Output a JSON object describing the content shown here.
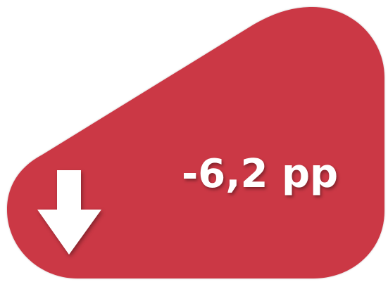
{
  "badge": {
    "value_text": "-6,2 pp",
    "direction_icon": "arrow-down-icon",
    "fill_color": "#CB3745",
    "text_color": "#FFFFFF"
  }
}
